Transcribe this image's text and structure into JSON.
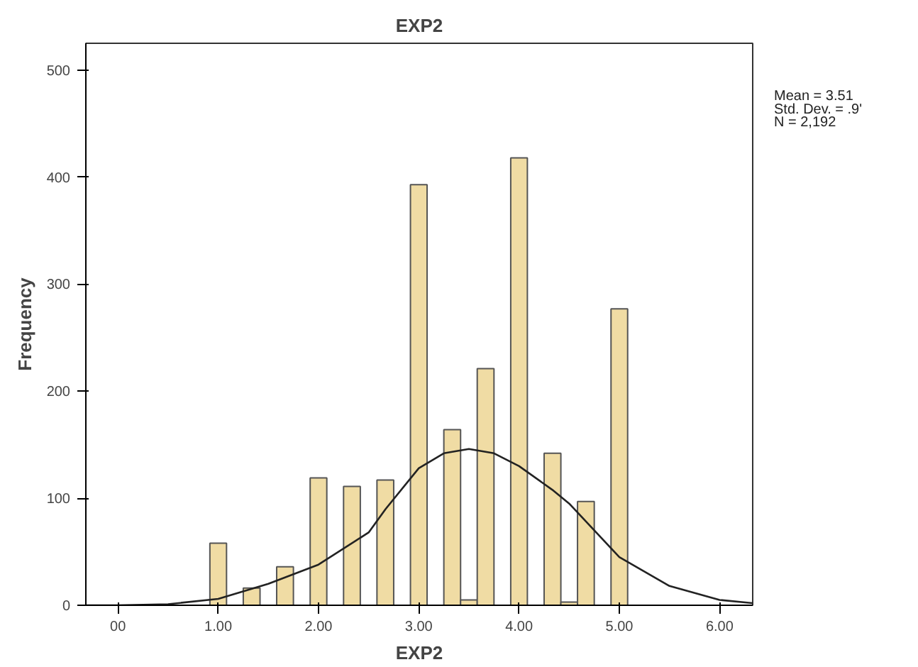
{
  "chart_data": {
    "type": "histogram",
    "title": "EXP2",
    "xlabel": "EXP2",
    "ylabel": "Frequency",
    "annotations": [
      "Mean = 3.51",
      "Std. Dev. = .9'",
      "N = 2,192"
    ],
    "bins": [
      0.917,
      1.083,
      1.25,
      1.417,
      1.583,
      1.75,
      1.917,
      2.083,
      2.25,
      2.417,
      2.583,
      2.75,
      2.917,
      3.083,
      3.25,
      3.417,
      3.583,
      3.75,
      3.917,
      4.083,
      4.25,
      4.417,
      4.583,
      4.75,
      4.917,
      5.083
    ],
    "values": [
      58,
      0,
      16,
      0,
      36,
      0,
      119,
      0,
      111,
      0,
      117,
      0,
      393,
      0,
      164,
      5,
      221,
      0,
      418,
      0,
      142,
      3,
      97,
      0,
      277
    ],
    "color": "#f0dca4",
    "series": [
      {
        "type": "line",
        "color": "#222222",
        "x": [
          -0.32,
          0,
          0.5,
          1,
          1.5,
          2,
          2.5,
          2.67,
          3,
          3.25,
          3.5,
          3.75,
          4,
          4.33,
          4.5,
          5,
          5.5,
          6,
          6.33
        ],
        "values": [
          0,
          0,
          1,
          6,
          20,
          38,
          68,
          90,
          128,
          142,
          146,
          142,
          130,
          108,
          95,
          45,
          18,
          5,
          2
        ]
      }
    ],
    "xlim": [
      -0.32,
      6.33
    ],
    "ylim": [
      0,
      525
    ],
    "xticks": [
      {
        "value": 0,
        "label": "00"
      },
      {
        "value": 1,
        "label": "1.00"
      },
      {
        "value": 2,
        "label": "2.00"
      },
      {
        "value": 3,
        "label": "3.00"
      },
      {
        "value": 4,
        "label": "4.00"
      },
      {
        "value": 5,
        "label": "5.00"
      },
      {
        "value": 6,
        "label": "6.00"
      }
    ],
    "yticks": [
      0,
      100,
      200,
      300,
      400,
      500
    ],
    "grid": false
  }
}
